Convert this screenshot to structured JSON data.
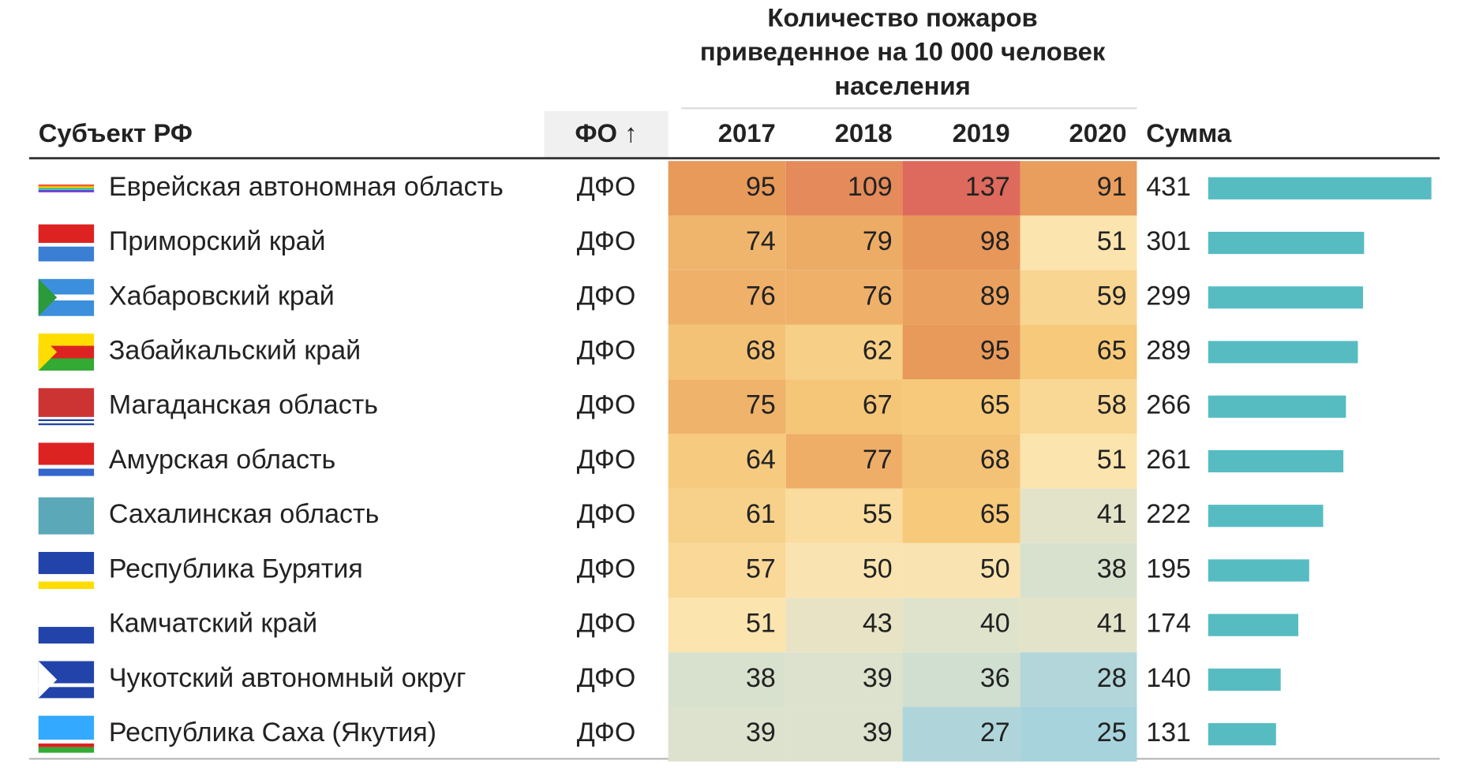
{
  "header": {
    "title_lines": [
      "Количество пожаров",
      "приведенное на 10 000 человек",
      "населения"
    ]
  },
  "columns": {
    "region": "Субъект РФ",
    "district": "ФО ↑",
    "years": [
      "2017",
      "2018",
      "2019",
      "2020"
    ],
    "sum": "Сумма"
  },
  "rows": [
    {
      "region": "Еврейская автономная область",
      "district": "ДФО",
      "values": [
        95,
        109,
        137,
        91
      ],
      "sum": 431
    },
    {
      "region": "Приморский край",
      "district": "ДФО",
      "values": [
        74,
        79,
        98,
        51
      ],
      "sum": 301
    },
    {
      "region": "Хабаровский край",
      "district": "ДФО",
      "values": [
        76,
        76,
        89,
        59
      ],
      "sum": 299
    },
    {
      "region": "Забайкальский край",
      "district": "ДФО",
      "values": [
        68,
        62,
        95,
        65
      ],
      "sum": 289
    },
    {
      "region": "Магаданская область",
      "district": "ДФО",
      "values": [
        75,
        67,
        65,
        58
      ],
      "sum": 266
    },
    {
      "region": "Амурская область",
      "district": "ДФО",
      "values": [
        64,
        77,
        68,
        51
      ],
      "sum": 261
    },
    {
      "region": "Сахалинская область",
      "district": "ДФО",
      "values": [
        61,
        55,
        65,
        41
      ],
      "sum": 222
    },
    {
      "region": "Республика Бурятия",
      "district": "ДФО",
      "values": [
        57,
        50,
        50,
        38
      ],
      "sum": 195
    },
    {
      "region": "Камчатский край",
      "district": "ДФО",
      "values": [
        51,
        43,
        40,
        41
      ],
      "sum": 174
    },
    {
      "region": "Чукотский автономный округ",
      "district": "ДФО",
      "values": [
        38,
        39,
        36,
        28
      ],
      "sum": 140
    },
    {
      "region": "Республика Саха (Якутия)",
      "district": "ДФО",
      "values": [
        39,
        39,
        27,
        25
      ],
      "sum": 131
    }
  ]
}
